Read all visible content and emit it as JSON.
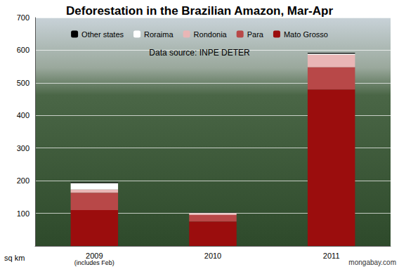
{
  "chart_data": {
    "type": "bar",
    "title": "Deforestation in the Brazilian Amazon, Mar-Apr",
    "subtitle": "Data source: INPE DETER",
    "ylabel": "sq km",
    "categories": [
      "2009",
      "2010",
      "2011"
    ],
    "series": [
      {
        "name": "Mato Grosso",
        "color": "#9b0d0d",
        "values": [
          110,
          75,
          480
        ]
      },
      {
        "name": "Para",
        "color": "#b84848",
        "values": [
          53,
          20,
          68
        ]
      },
      {
        "name": "Rondonia",
        "color": "#e9b6b6",
        "values": [
          10,
          5,
          38
        ]
      },
      {
        "name": "Roraima",
        "color": "#ffffff",
        "values": [
          20,
          2,
          3
        ]
      },
      {
        "name": "Other states",
        "color": "#000000",
        "values": [
          2,
          1,
          3
        ]
      }
    ],
    "annotations": [
      {
        "text": "(includes Feb)",
        "category": "2009"
      },
      {
        "text": "mongabay.com"
      }
    ],
    "ylim": [
      0,
      700
    ],
    "yticks": [
      100,
      200,
      300,
      400,
      500,
      600,
      700
    ],
    "stacked": true,
    "grid": true,
    "legend": "top"
  }
}
